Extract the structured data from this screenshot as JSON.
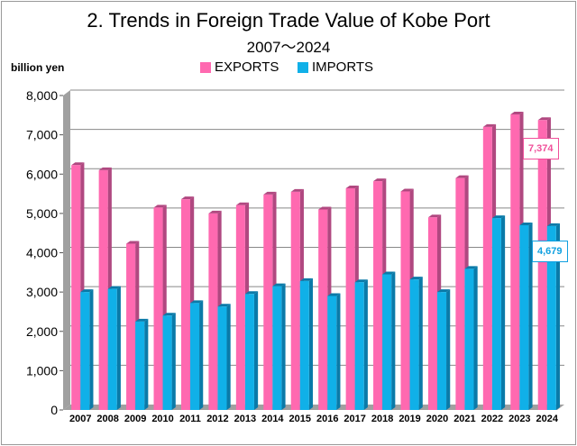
{
  "chart_data": {
    "type": "bar",
    "title": "2. Trends in Foreign Trade Value of Kobe Port",
    "subtitle": "2007～2024",
    "ylabel": "billion yen",
    "ylim": [
      0,
      8000
    ],
    "yticks": [
      "0",
      "1,000",
      "2,000",
      "3,000",
      "4,000",
      "5,000",
      "6,000",
      "7,000",
      "8,000"
    ],
    "grid": true,
    "legend": "top",
    "categories": [
      "2007",
      "2008",
      "2009",
      "2010",
      "2011",
      "2012",
      "2013",
      "2014",
      "2015",
      "2016",
      "2017",
      "2018",
      "2019",
      "2020",
      "2021",
      "2022",
      "2023",
      "2024"
    ],
    "series": [
      {
        "name": "EXPORTS",
        "color": "#ff69b0",
        "values": [
          6230,
          6100,
          4230,
          5150,
          5360,
          5000,
          5210,
          5480,
          5550,
          5100,
          5640,
          5820,
          5560,
          4900,
          5900,
          7200,
          7520,
          7374
        ]
      },
      {
        "name": "IMPORTS",
        "color": "#10b0e8",
        "values": [
          3000,
          3080,
          2250,
          2400,
          2720,
          2630,
          2950,
          3150,
          3280,
          2900,
          3250,
          3450,
          3320,
          3000,
          3590,
          4880,
          4700,
          4679
        ]
      }
    ],
    "annotations": [
      {
        "series": "EXPORTS",
        "category": "2024",
        "text": "7,374"
      },
      {
        "series": "IMPORTS",
        "category": "2024",
        "text": "4,679"
      }
    ]
  }
}
